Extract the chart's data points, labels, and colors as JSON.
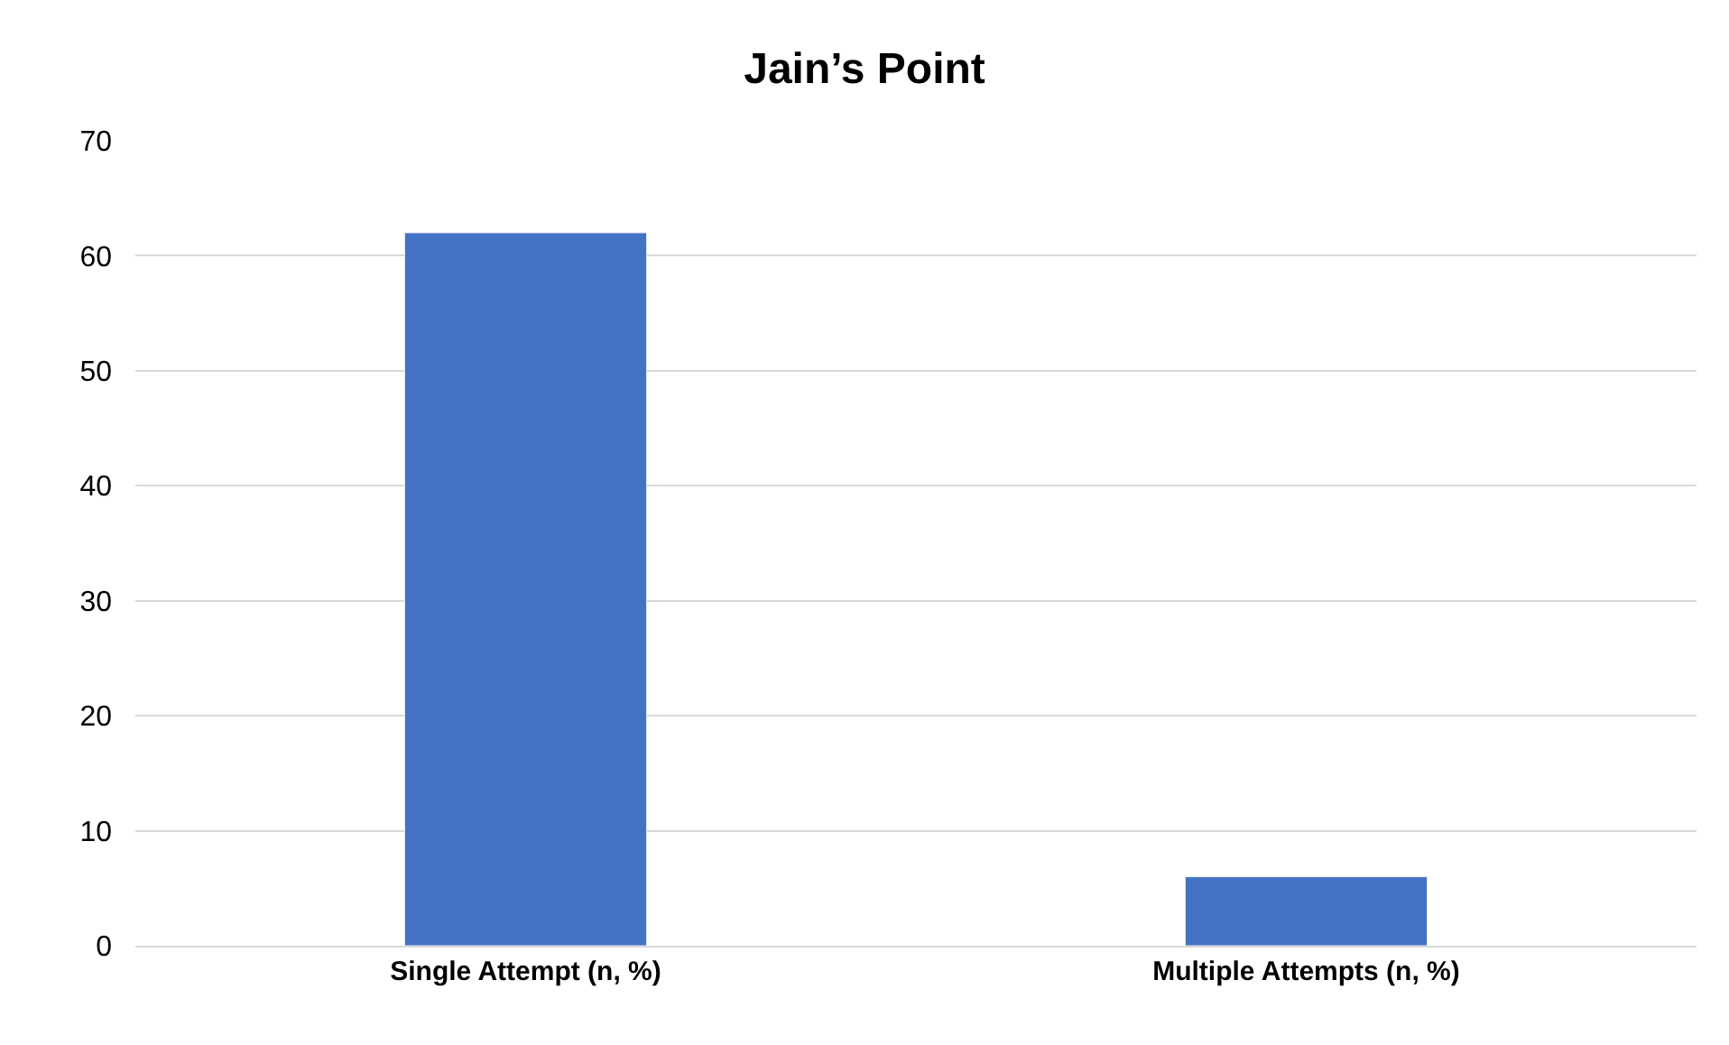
{
  "chart_data": {
    "type": "bar",
    "title": "Jain’s Point",
    "categories": [
      "Single Attempt (n, %)",
      "Multiple Attempts (n, %)"
    ],
    "values": [
      62,
      6
    ],
    "color": "#4472c4",
    "ylim": [
      0,
      70
    ],
    "yticks": [
      0,
      10,
      20,
      30,
      40,
      50,
      60,
      70
    ],
    "grid": "y",
    "legend": false
  }
}
